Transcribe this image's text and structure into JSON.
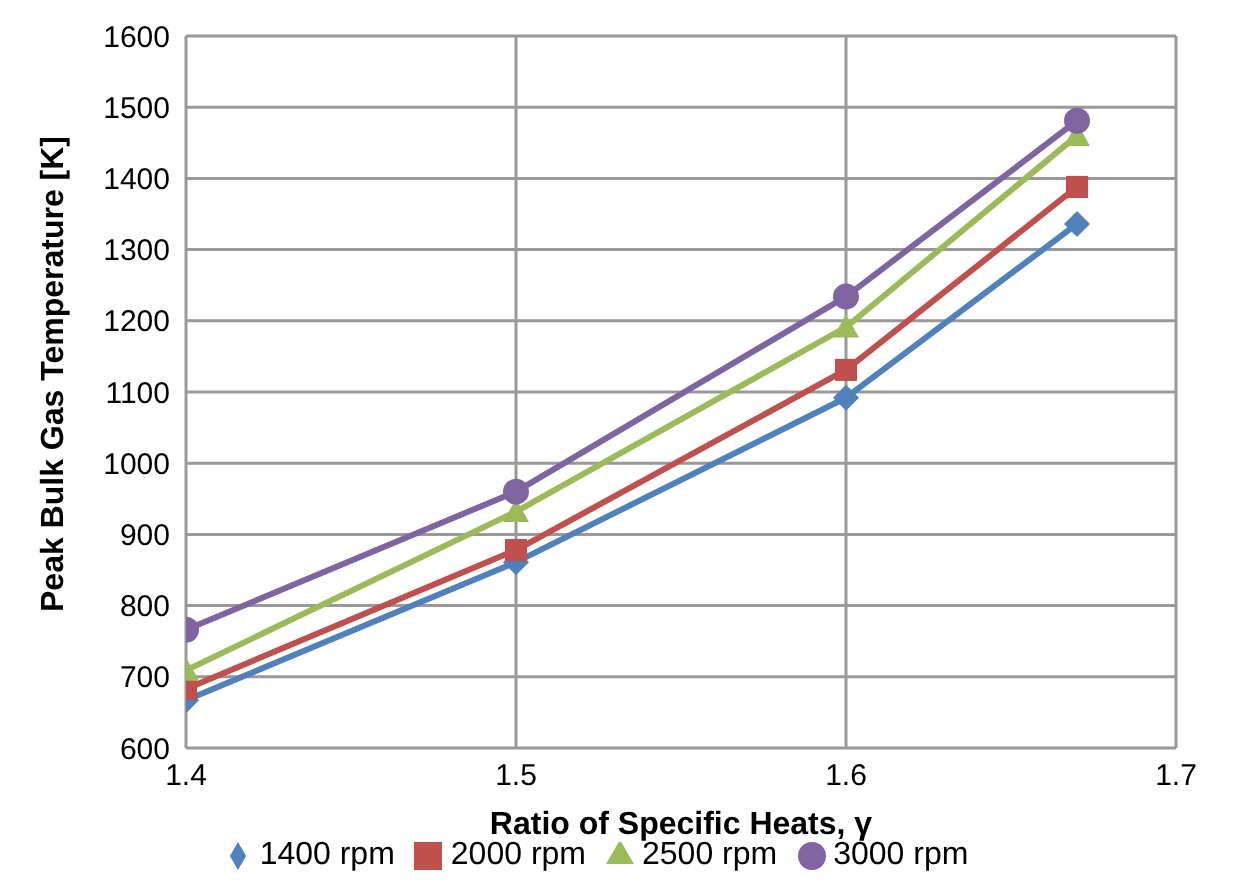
{
  "chart_data": {
    "type": "line",
    "xlabel": "Ratio of Specific Heats, γ",
    "ylabel": "Peak Bulk Gas Temperature [K]",
    "x": [
      1.4,
      1.5,
      1.6,
      1.67
    ],
    "series": [
      {
        "name": "1400 rpm",
        "color": "#4f81bd",
        "marker": "diamond",
        "values": [
          667,
          861,
          1092,
          1336
        ]
      },
      {
        "name": "2000 rpm",
        "color": "#c0504d",
        "marker": "square",
        "values": [
          683,
          878,
          1131,
          1388
        ]
      },
      {
        "name": "2500 rpm",
        "color": "#9bbb59",
        "marker": "triangle",
        "values": [
          709,
          932,
          1191,
          1460
        ]
      },
      {
        "name": "3000 rpm",
        "color": "#8064a2",
        "marker": "circle",
        "values": [
          766,
          960,
          1234,
          1481
        ]
      }
    ],
    "xlim": [
      1.4,
      1.7
    ],
    "xticks": [
      1.4,
      1.5,
      1.6,
      1.7
    ],
    "ylim": [
      600,
      1600
    ],
    "yticks": [
      600,
      700,
      800,
      900,
      1000,
      1100,
      1200,
      1300,
      1400,
      1500,
      1600
    ],
    "grid": true,
    "legend": "bottom"
  }
}
